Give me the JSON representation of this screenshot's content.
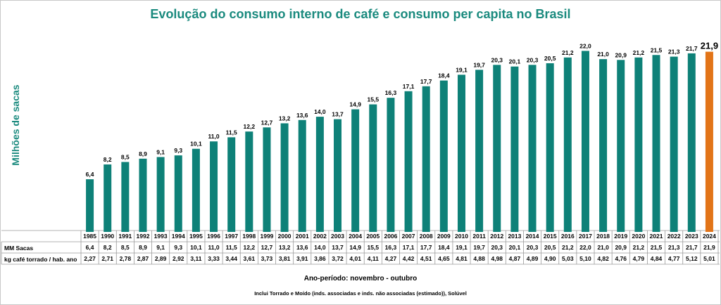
{
  "chart_data": {
    "type": "bar",
    "title": "Evolução do consumo interno de café e consumo per capita no Brasil",
    "ylabel": "Milhões  de  sacas",
    "xlabel": "Ano-período: novembro - outubro",
    "footnote": "Inclui Torrado e Moído (inds. associadas e inds. não associadas (estimado)), Solúvel",
    "categories": [
      "1985",
      "1990",
      "1991",
      "1992",
      "1993",
      "1994",
      "1995",
      "1996",
      "1997",
      "1998",
      "1999",
      "2000",
      "2001",
      "2002",
      "2003",
      "2004",
      "2005",
      "2006",
      "2007",
      "2008",
      "2009",
      "2010",
      "2011",
      "2012",
      "2013",
      "2014",
      "2015",
      "2016",
      "2017",
      "2018",
      "2019",
      "2020",
      "2021",
      "2022",
      "2023",
      "2024"
    ],
    "values": [
      6.4,
      8.2,
      8.5,
      8.9,
      9.1,
      9.3,
      10.1,
      11.0,
      11.5,
      12.2,
      12.7,
      13.2,
      13.6,
      14.0,
      13.7,
      14.9,
      15.5,
      16.3,
      17.1,
      17.7,
      18.4,
      19.1,
      19.7,
      20.3,
      20.1,
      20.3,
      20.5,
      21.2,
      22.0,
      21.0,
      20.9,
      21.2,
      21.5,
      21.3,
      21.7,
      21.9
    ],
    "value_labels": [
      "6,4",
      "8,2",
      "8,5",
      "8,9",
      "9,1",
      "9,3",
      "10,1",
      "11,0",
      "11,5",
      "12,2",
      "12,7",
      "13,2",
      "13,6",
      "14,0",
      "13,7",
      "14,9",
      "15,5",
      "16,3",
      "17,1",
      "17,7",
      "18,4",
      "19,1",
      "19,7",
      "20,3",
      "20,1",
      "20,3",
      "20,5",
      "21,2",
      "22,0",
      "21,0",
      "20,9",
      "21,2",
      "21,5",
      "21,3",
      "21,7",
      "21,9"
    ],
    "ylim": [
      0,
      24
    ],
    "grid": false,
    "bar_color": "#0e8178",
    "highlight_color": "#e27418",
    "highlight_category": "2024",
    "table": {
      "rows": [
        {
          "label": "MM Sacas",
          "values": [
            "6,4",
            "8,2",
            "8,5",
            "8,9",
            "9,1",
            "9,3",
            "10,1",
            "11,0",
            "11,5",
            "12,2",
            "12,7",
            "13,2",
            "13,6",
            "14,0",
            "13,7",
            "14,9",
            "15,5",
            "16,3",
            "17,1",
            "17,7",
            "18,4",
            "19,1",
            "19,7",
            "20,3",
            "20,1",
            "20,3",
            "20,5",
            "21,2",
            "22,0",
            "21,0",
            "20,9",
            "21,2",
            "21,5",
            "21,3",
            "21,7",
            "21,9"
          ]
        },
        {
          "label": "kg café torrado / hab. ano",
          "values": [
            "2,27",
            "2,71",
            "2,78",
            "2,87",
            "2,89",
            "2,92",
            "3,11",
            "3,33",
            "3,44",
            "3,61",
            "3,73",
            "3,81",
            "3,91",
            "3,86",
            "3,72",
            "4,01",
            "4,11",
            "4,27",
            "4,42",
            "4,51",
            "4,65",
            "4,81",
            "4,88",
            "4,98",
            "4,87",
            "4,89",
            "4,90",
            "5,03",
            "5,10",
            "4,82",
            "4,76",
            "4,79",
            "4,84",
            "4,77",
            "5,12",
            "5,01"
          ]
        }
      ]
    }
  }
}
